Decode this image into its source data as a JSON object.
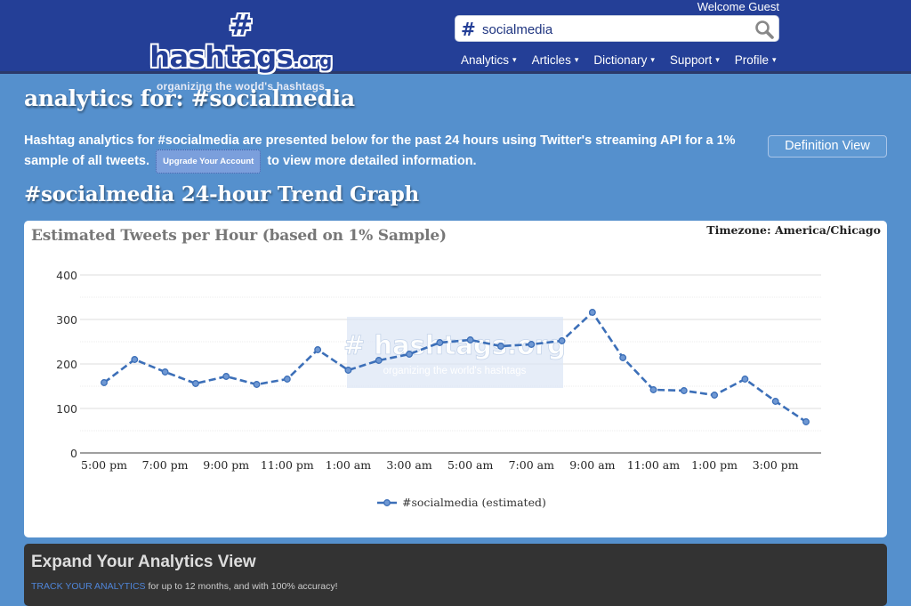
{
  "header": {
    "logo_main": "# hashtags",
    "logo_tld": ".org",
    "logo_tagline": "organizing the world's hashtags",
    "welcome": "Welcome Guest",
    "search": {
      "hash": "#",
      "value": "socialmedia",
      "icon": "search-icon"
    },
    "nav": [
      {
        "label": "Analytics",
        "caret": "▾"
      },
      {
        "label": "Articles",
        "caret": "▾"
      },
      {
        "label": "Dictionary",
        "caret": "▾"
      },
      {
        "label": "Support",
        "caret": "▾"
      },
      {
        "label": "Profile",
        "caret": "▾"
      }
    ]
  },
  "main": {
    "title": "analytics for: #socialmedia",
    "intro_part1": "Hashtag analytics for #socialmedia are presented below for the past 24 hours using Twitter's streaming API for a 1% sample of all tweets.",
    "upgrade_label": "Upgrade Your Account",
    "intro_part2": "to view more detailed information.",
    "definition_button": "Definition View",
    "graph_heading": "#socialmedia 24-hour Trend Graph",
    "chart_title": "Estimated Tweets per Hour (based on 1% Sample)",
    "timezone": "Timezone: America/Chicago",
    "watermark_main": "# hashtags.org",
    "watermark_tagline": "organizing the world's hashtags"
  },
  "promo": {
    "title": "Expand Your Analytics View",
    "link": "TRACK YOUR ANALYTICS",
    "text": " for up to 12 months, and with 100% accuracy!"
  },
  "colors": {
    "header_bg": "#243f97",
    "page_bg": "#5590cd",
    "series": "#3c6fb8",
    "promo_bg": "#333333",
    "link": "#4f85d8"
  },
  "chart_data": {
    "type": "line",
    "title": "Estimated Tweets per Hour (based on 1% Sample)",
    "xlabel": "",
    "ylabel": "",
    "ylim": [
      0,
      400
    ],
    "yticks": [
      0,
      100,
      200,
      300,
      400
    ],
    "grid": true,
    "legend_position": "bottom",
    "x": [
      "5:00 pm",
      "6:00 pm",
      "7:00 pm",
      "8:00 pm",
      "9:00 pm",
      "10:00 pm",
      "11:00 pm",
      "12:00 am",
      "1:00 am",
      "2:00 am",
      "3:00 am",
      "4:00 am",
      "5:00 am",
      "6:00 am",
      "7:00 am",
      "8:00 am",
      "9:00 am",
      "10:00 am",
      "11:00 am",
      "12:00 pm",
      "1:00 pm",
      "2:00 pm",
      "3:00 pm",
      "4:00 pm"
    ],
    "xtick_labels": [
      "5:00 pm",
      "7:00 pm",
      "9:00 pm",
      "11:00 pm",
      "1:00 am",
      "3:00 am",
      "5:00 am",
      "7:00 am",
      "9:00 am",
      "11:00 am",
      "1:00 pm",
      "3:00 pm"
    ],
    "series": [
      {
        "name": "#socialmedia (estimated)",
        "style": "dashed",
        "values": [
          158,
          210,
          182,
          156,
          172,
          154,
          166,
          232,
          186,
          208,
          222,
          248,
          254,
          240,
          244,
          252,
          316,
          214,
          142,
          140,
          130,
          166,
          116,
          70
        ]
      }
    ]
  }
}
